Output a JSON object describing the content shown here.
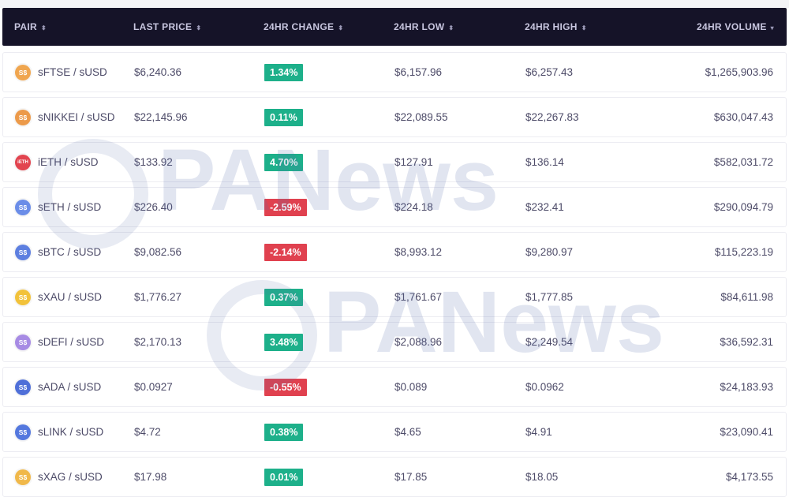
{
  "header": {
    "pair": "PAIR",
    "last_price": "LAST PRICE",
    "change": "24HR CHANGE",
    "low": "24HR LOW",
    "high": "24HR HIGH",
    "volume": "24HR VOLUME",
    "sort_icon": "⬍",
    "sort_active_icon": "▾"
  },
  "watermark": "PANews",
  "colors": {
    "positive": "#1db08a",
    "negative": "#e0414f",
    "header_bg": "#151328"
  },
  "rows": [
    {
      "pair": "sFTSE / sUSD",
      "icon": "S$",
      "icon_color": "#f0a64f",
      "price": "$6,240.36",
      "change": "1.34%",
      "dir": "up",
      "low": "$6,157.96",
      "high": "$6,257.43",
      "volume": "$1,265,903.96"
    },
    {
      "pair": "sNIKKEI / sUSD",
      "icon": "S$",
      "icon_color": "#ec9a4a",
      "price": "$22,145.96",
      "change": "0.11%",
      "dir": "up",
      "low": "$22,089.55",
      "high": "$22,267.83",
      "volume": "$630,047.43"
    },
    {
      "pair": "iETH / sUSD",
      "icon": "iETH",
      "icon_color": "#e2444f",
      "price": "$133.92",
      "change": "4.70%",
      "dir": "up",
      "low": "$127.91",
      "high": "$136.14",
      "volume": "$582,031.72"
    },
    {
      "pair": "sETH / sUSD",
      "icon": "S$",
      "icon_color": "#6b8de8",
      "price": "$226.40",
      "change": "-2.59%",
      "dir": "down",
      "low": "$224.18",
      "high": "$232.41",
      "volume": "$290,094.79"
    },
    {
      "pair": "sBTC / sUSD",
      "icon": "S$",
      "icon_color": "#5d7fe0",
      "price": "$9,082.56",
      "change": "-2.14%",
      "dir": "down",
      "low": "$8,993.12",
      "high": "$9,280.97",
      "volume": "$115,223.19"
    },
    {
      "pair": "sXAU / sUSD",
      "icon": "S$",
      "icon_color": "#f2c23a",
      "price": "$1,776.27",
      "change": "0.37%",
      "dir": "up",
      "low": "$1,761.67",
      "high": "$1,777.85",
      "volume": "$84,611.98"
    },
    {
      "pair": "sDEFI / sUSD",
      "icon": "S$",
      "icon_color": "#a78be4",
      "price": "$2,170.13",
      "change": "3.48%",
      "dir": "up",
      "low": "$2,088.96",
      "high": "$2,249.54",
      "volume": "$36,592.31"
    },
    {
      "pair": "sADA / sUSD",
      "icon": "S$",
      "icon_color": "#4f6fd8",
      "price": "$0.0927",
      "change": "-0.55%",
      "dir": "down",
      "low": "$0.089",
      "high": "$0.0962",
      "volume": "$24,183.93"
    },
    {
      "pair": "sLINK / sUSD",
      "icon": "S$",
      "icon_color": "#5478de",
      "price": "$4.72",
      "change": "0.38%",
      "dir": "up",
      "low": "$4.65",
      "high": "$4.91",
      "volume": "$23,090.41"
    },
    {
      "pair": "sXAG / sUSD",
      "icon": "S$",
      "icon_color": "#f0b84a",
      "price": "$17.98",
      "change": "0.01%",
      "dir": "up",
      "low": "$17.85",
      "high": "$18.05",
      "volume": "$4,173.55"
    }
  ]
}
